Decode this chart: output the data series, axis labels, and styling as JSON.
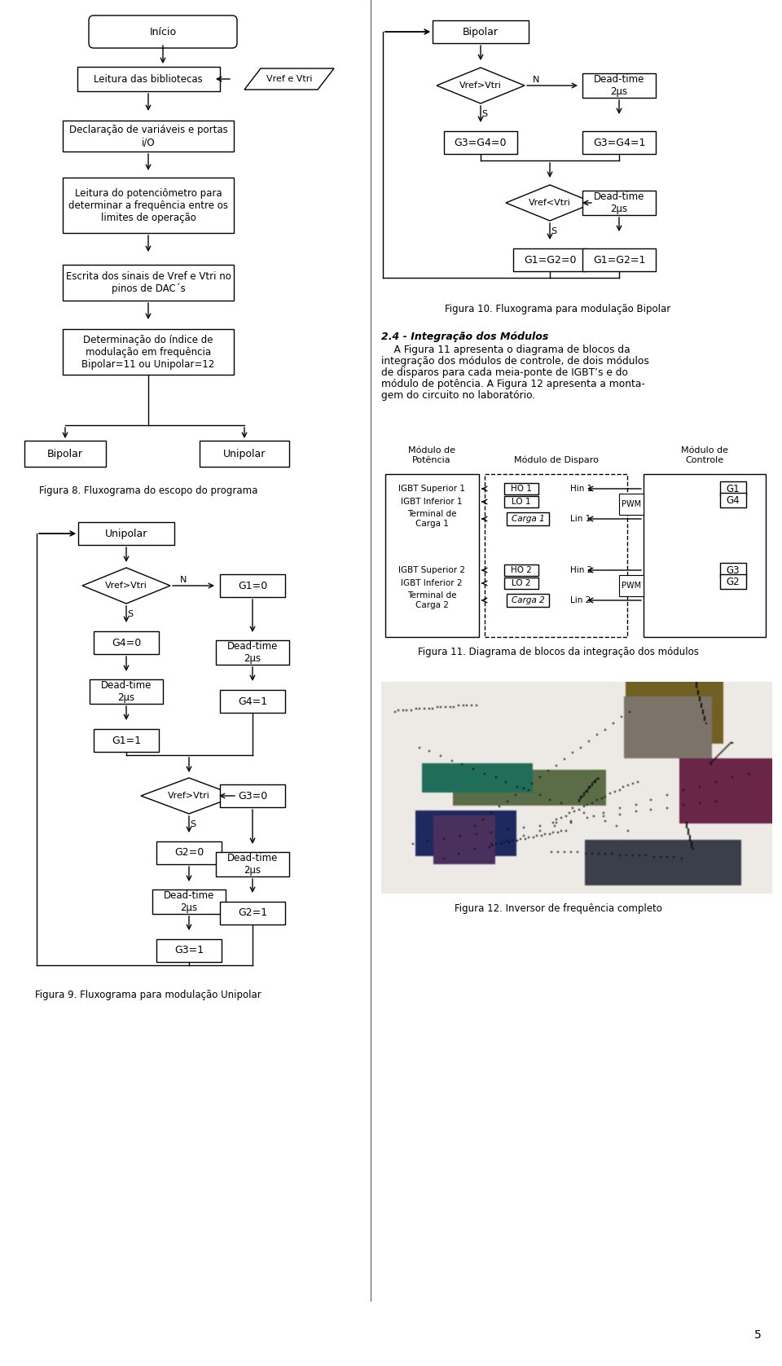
{
  "bg_color": "#ffffff",
  "page_number": "5",
  "fig8_caption": "Figura 8. Fluxograma do escopo do programa",
  "fig9_caption": "Figura 9. Fluxograma para modulação Unipolar",
  "fig10_caption": "Figura 10. Fluxograma para modulação Bipolar",
  "fig11_caption": "Figura 11. Diagrama de blocos da integração dos módulos",
  "fig12_caption": "Figura 12. Inversor de frequência completo",
  "section_title": "2.4 - Integração dos Módulos",
  "section_lines": [
    "    A Figura 11 apresenta o diagrama de blocos da",
    "integração dos módulos de controle, de dois módulos",
    "de disparos para cada meia-ponte de IGBT’s e do",
    "módulo de potência. A Figura 12 apresenta a monta-",
    "gem do circuito no laboratório."
  ]
}
